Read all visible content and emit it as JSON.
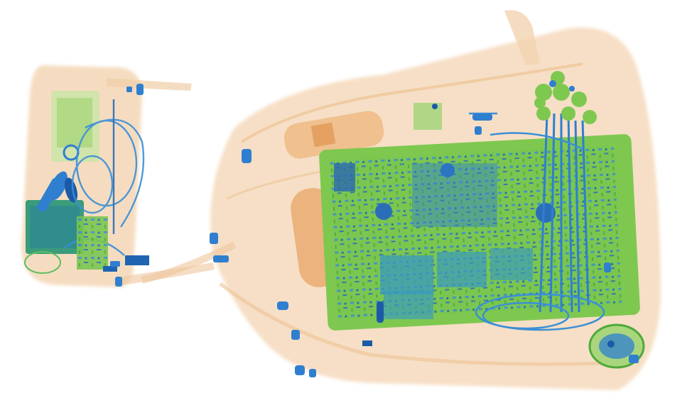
{
  "image": {
    "kind": "x-ray-baggage-scan",
    "background": "#ffffff",
    "palette": {
      "organic_light": "#f6dcc0",
      "organic_mid": "#eec394",
      "organic_dark": "#e7a766",
      "mixed_green": "#7ec850",
      "mixed_green_dark": "#4fa83a",
      "metal_blue": "#2f7fd0",
      "metal_blue_dark": "#1c5aa8",
      "teal": "#3aa0a0"
    },
    "objects": [
      {
        "name": "small-pouch",
        "material": "organic"
      },
      {
        "name": "keys",
        "material": "metal"
      },
      {
        "name": "cables-left",
        "material": "metal"
      },
      {
        "name": "large-bag",
        "material": "organic"
      },
      {
        "name": "laptop",
        "material": "mixed"
      },
      {
        "name": "cable-bundle",
        "material": "metal"
      },
      {
        "name": "round-object",
        "material": "mixed"
      },
      {
        "name": "zipper-pulls",
        "material": "metal"
      }
    ]
  }
}
